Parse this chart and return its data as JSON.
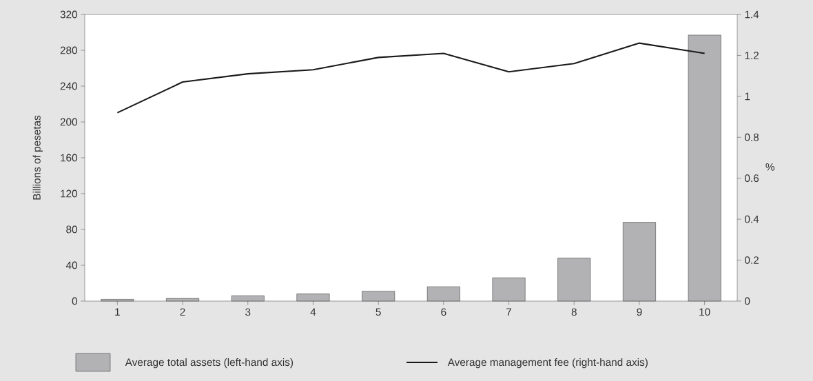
{
  "chart_data": {
    "type": "bar",
    "categories": [
      "1",
      "2",
      "3",
      "4",
      "5",
      "6",
      "7",
      "8",
      "9",
      "10"
    ],
    "ylabel": "Billions of pesetas",
    "y2label": "%",
    "ylim": [
      0,
      320
    ],
    "yticks": [
      0,
      40,
      80,
      120,
      160,
      200,
      240,
      280,
      320
    ],
    "y2lim": [
      0,
      1.4
    ],
    "y2ticks": [
      0,
      0.2,
      0.4,
      0.6,
      0.8,
      1,
      1.2,
      1.4
    ],
    "legend": "bottom",
    "grid": false,
    "series": [
      {
        "name": "Average total assets (left-hand axis)",
        "color": "#b2b2b4",
        "values": [
          2,
          3,
          6,
          8,
          11,
          16,
          26,
          48,
          88,
          297
        ]
      },
      {
        "name": "Average management fee (right-hand axis)",
        "type": "line",
        "axis": "y2",
        "color": "#1a1a1a",
        "values": [
          0.92,
          1.07,
          1.11,
          1.13,
          1.19,
          1.21,
          1.12,
          1.16,
          1.26,
          1.21
        ]
      }
    ]
  }
}
